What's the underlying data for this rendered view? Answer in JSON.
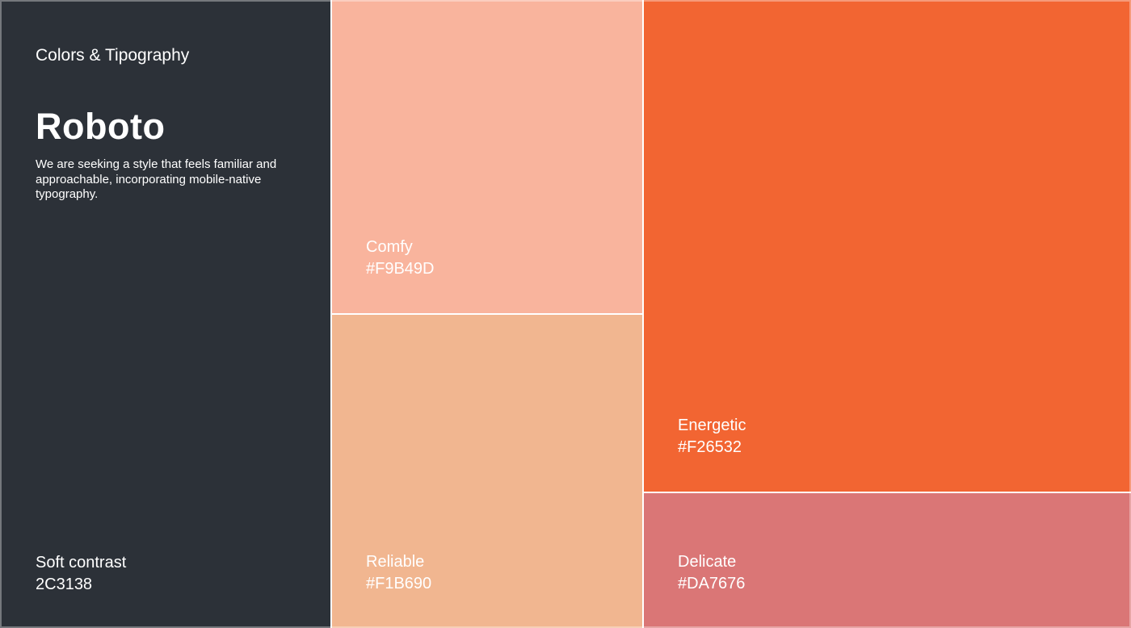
{
  "page": {
    "heading": "Colors & Tipography"
  },
  "typography": {
    "font_name": "Roboto",
    "description_lines": [
      "We are seeking a style that feels familiar and",
      "approachable, incorporating mobile-native",
      "typography."
    ]
  },
  "panel_swatch": {
    "name": "Soft contrast",
    "code": "2C3138"
  },
  "swatches": [
    {
      "name": "Comfy",
      "code": "#F9B49D"
    },
    {
      "name": "Reliable",
      "code": "#F1B690"
    },
    {
      "name": "Energetic",
      "code": "#F26532"
    },
    {
      "name": "Delicate",
      "code": "#DA7676"
    }
  ],
  "colors": {
    "panel_bg": "#2C3138",
    "comfy": "#F9B49D",
    "reliable": "#F1B690",
    "energetic": "#F26532",
    "delicate": "#DA7676",
    "divider": "#FFFFFF",
    "text": "#FFFFFF"
  }
}
